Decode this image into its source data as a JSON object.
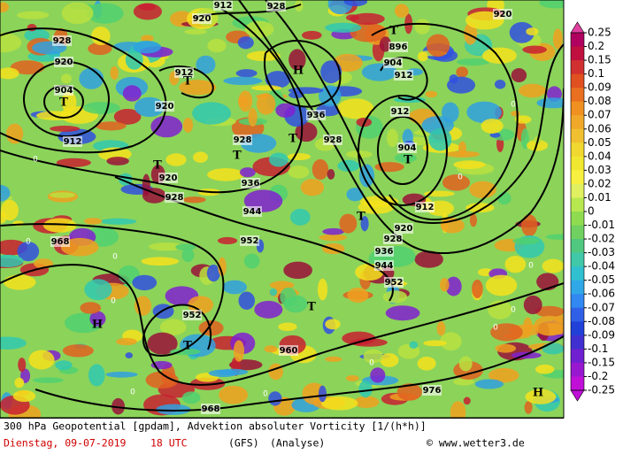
{
  "map": {
    "contour_labels": [
      "912",
      "928",
      "920",
      "920",
      "928",
      "920",
      "896",
      "904",
      "912",
      "912",
      "904",
      "920",
      "936",
      "912",
      "912",
      "928",
      "928",
      "904",
      "920",
      "936",
      "928",
      "944",
      "912",
      "920",
      "952",
      "968",
      "928",
      "936",
      "944",
      "952",
      "952",
      "960",
      "976",
      "968"
    ],
    "pressure_centers": [
      "T",
      "H",
      "T",
      "T",
      "T",
      "T",
      "T",
      "T",
      "T",
      "T",
      "T",
      "H",
      "H"
    ],
    "zero_labels": [
      "0",
      "0",
      "0",
      "0",
      "0",
      "0",
      "0",
      "0",
      "0",
      "0",
      "0",
      "0"
    ]
  },
  "colorbar": {
    "labels": [
      0.25,
      0.2,
      0.15,
      0.1,
      0.09,
      0.08,
      0.07,
      0.06,
      0.05,
      0.04,
      0.03,
      0.02,
      0.01,
      0,
      -0.01,
      -0.02,
      -0.03,
      -0.04,
      -0.05,
      -0.06,
      -0.07,
      -0.08,
      -0.09,
      -0.1,
      -0.15,
      -0.2,
      -0.25
    ]
  },
  "footer": {
    "title": "300 hPa Geopotential [gpdam], Advektion absoluter Vorticity [1/(h*h)]",
    "date": "Dienstag, 09-07-2019",
    "time": "18 UTC",
    "model": "(GFS)",
    "mode": "(Analyse)",
    "credit": "© www.wetter3.de"
  }
}
